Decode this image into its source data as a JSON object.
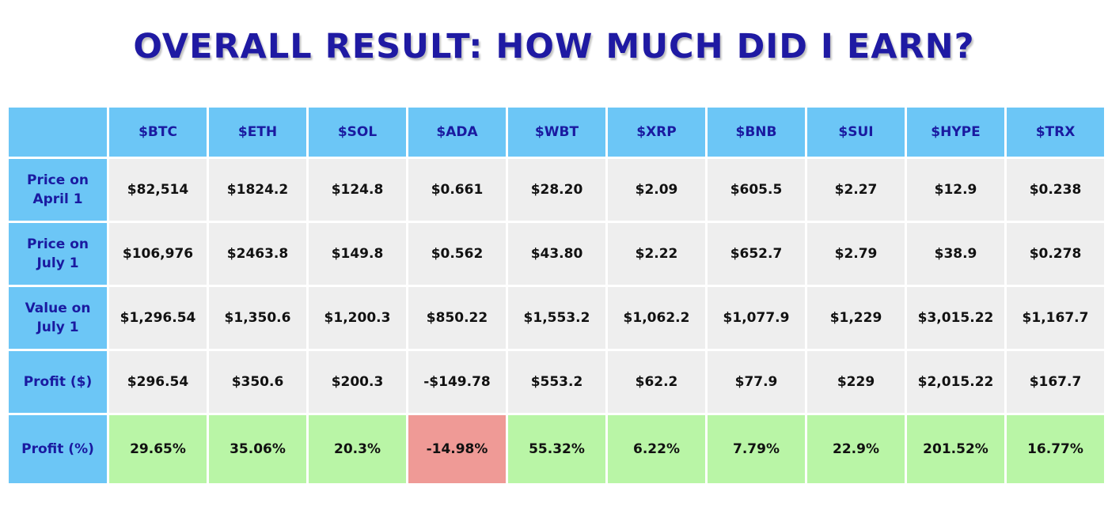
{
  "title": "OVERALL RESULT: HOW MUCH DID I EARN?",
  "colors": {
    "title": "#1f1aa3",
    "header_bg": "#6cc6f6",
    "cell_bg": "#eeeeee",
    "positive_bg": "#b9f5a6",
    "negative_bg": "#ef9a96"
  },
  "chart_data": {
    "type": "table",
    "title": "OVERALL RESULT: HOW MUCH DID I EARN?",
    "columns": [
      "$BTC",
      "$ETH",
      "$SOL",
      "$ADA",
      "$WBT",
      "$XRP",
      "$BNB",
      "$SUI",
      "$HYPE",
      "$TRX"
    ],
    "rows": [
      {
        "label": "Price on April 1",
        "values": [
          "$82,514",
          "$1824.2",
          "$124.8",
          "$0.661",
          "$28.20",
          "$2.09",
          "$605.5",
          "$2.27",
          "$12.9",
          "$0.238"
        ]
      },
      {
        "label": "Price on July 1",
        "values": [
          "$106,976",
          "$2463.8",
          "$149.8",
          "$0.562",
          "$43.80",
          "$2.22",
          "$652.7",
          "$2.79",
          "$38.9",
          "$0.278"
        ]
      },
      {
        "label": "Value on July 1",
        "values": [
          "$1,296.54",
          "$1,350.6",
          "$1,200.3",
          "$850.22",
          "$1,553.2",
          "$1,062.2",
          "$1,077.9",
          "$1,229",
          "$3,015.22",
          "$1,167.7"
        ]
      },
      {
        "label": "Profit ($)",
        "values": [
          "$296.54",
          "$350.6",
          "$200.3",
          "-$149.78",
          "$553.2",
          "$62.2",
          "$77.9",
          "$229",
          "$2,015.22",
          "$167.7"
        ]
      },
      {
        "label": "Profit (%)",
        "values": [
          "29.65%",
          "35.06%",
          "20.3%",
          "-14.98%",
          "55.32%",
          "6.22%",
          "7.79%",
          "22.9%",
          "201.52%",
          "16.77%"
        ],
        "numeric": [
          29.65,
          35.06,
          20.3,
          -14.98,
          55.32,
          6.22,
          7.79,
          22.9,
          201.52,
          16.77
        ]
      }
    ]
  }
}
